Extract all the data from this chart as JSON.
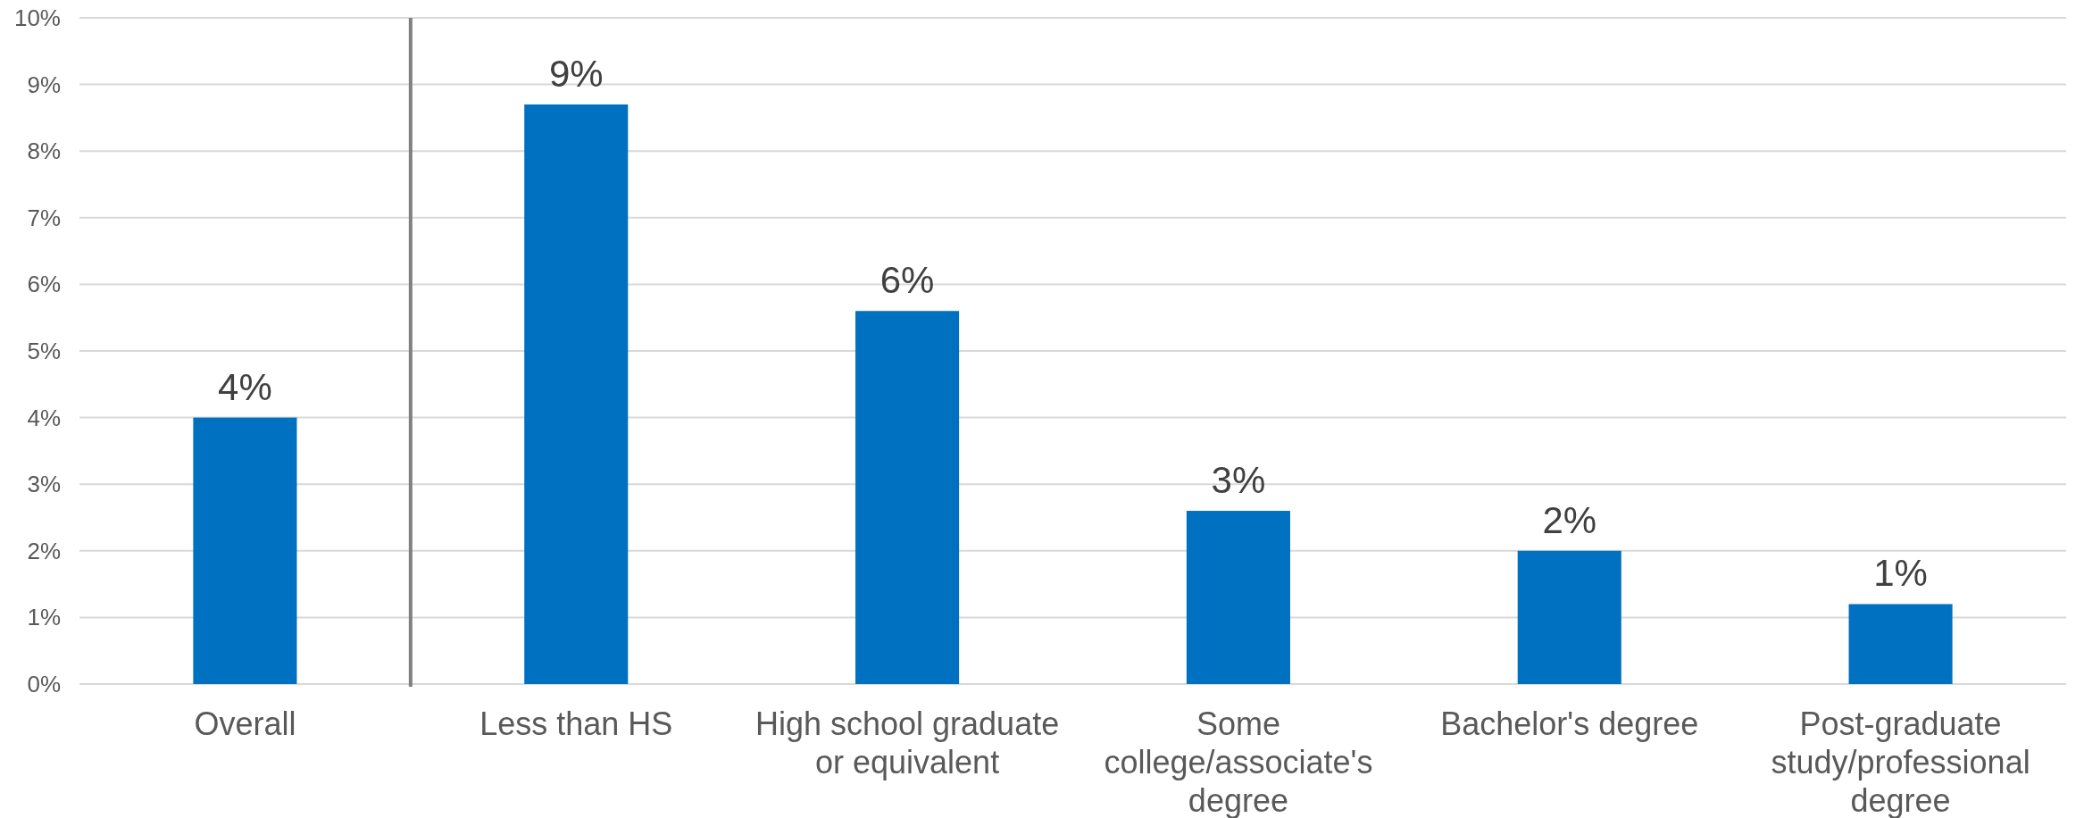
{
  "chart_data": [
    {
      "type": "bar",
      "categories": [
        "Overall"
      ],
      "values": [
        4.0
      ],
      "value_labels": [
        "4%"
      ],
      "color": "#0070c0",
      "ylim": [
        0,
        10
      ],
      "yticks": [
        {
          "value": 0,
          "label": "0%"
        },
        {
          "value": 1,
          "label": "1%"
        },
        {
          "value": 2,
          "label": "2%"
        },
        {
          "value": 3,
          "label": "3%"
        },
        {
          "value": 4,
          "label": "4%"
        },
        {
          "value": 5,
          "label": "5%"
        },
        {
          "value": 6,
          "label": "6%"
        },
        {
          "value": 7,
          "label": "7%"
        },
        {
          "value": 8,
          "label": "8%"
        },
        {
          "value": 9,
          "label": "9%"
        },
        {
          "value": 10,
          "label": "10%"
        }
      ],
      "grid": "y"
    },
    {
      "type": "bar",
      "categories": [
        "Less than HS",
        "High school graduate or equivalent",
        "Some college/associate's degree",
        "Bachelor's degree",
        "Post-graduate study/professional degree"
      ],
      "values": [
        8.7,
        5.6,
        2.6,
        2.0,
        1.2
      ],
      "value_labels": [
        "9%",
        "6%",
        "3%",
        "2%",
        "1%"
      ],
      "color": "#0070c0",
      "ylim": [
        0,
        10
      ],
      "yticks": [
        0,
        1,
        2,
        3,
        4,
        5,
        6,
        7,
        8,
        9,
        10
      ],
      "grid": "y",
      "tick_labels": "x"
    }
  ]
}
